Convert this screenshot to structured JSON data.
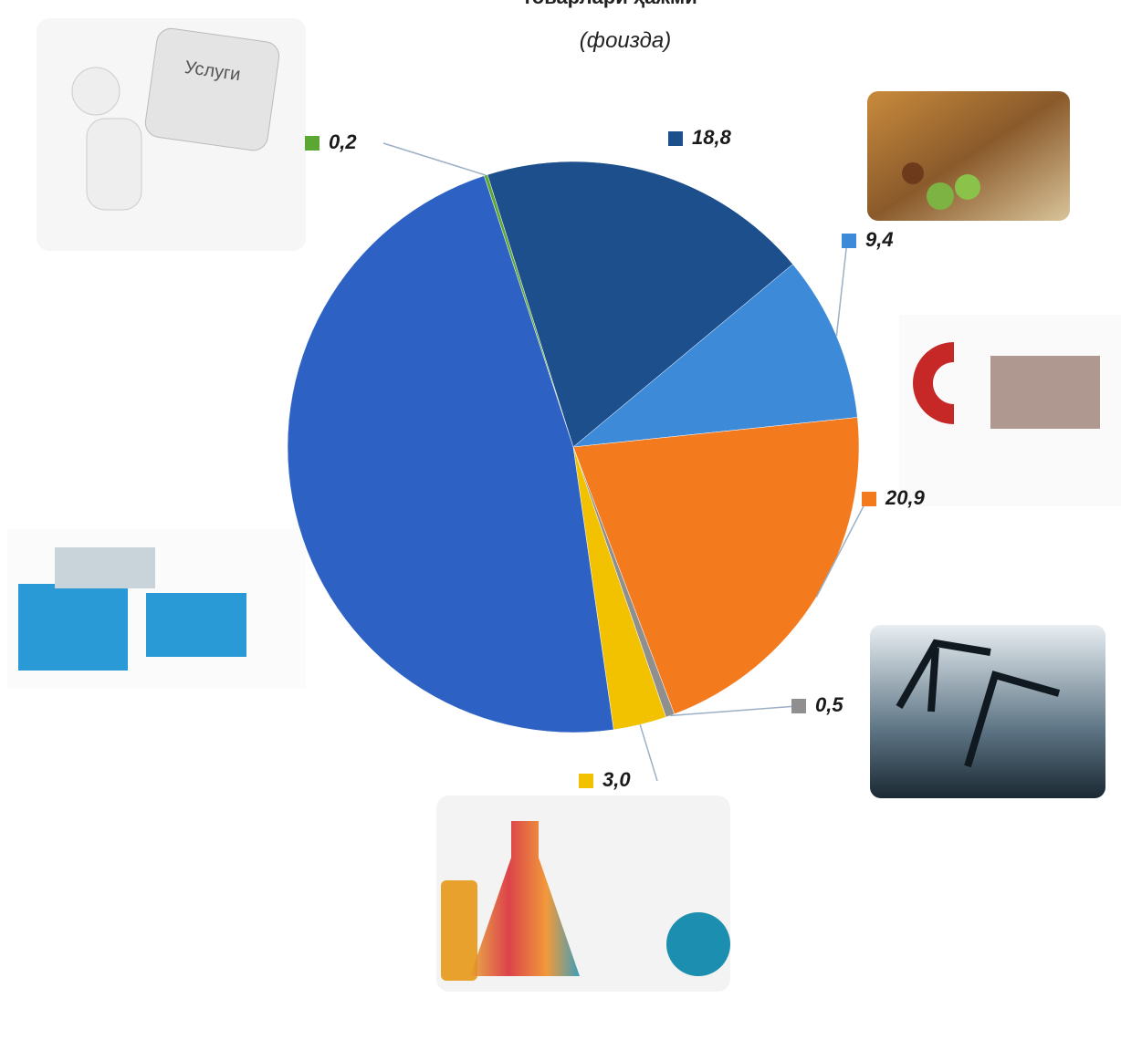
{
  "chart_data": {
    "type": "pie",
    "title": "товарлари ҳажми",
    "subtitle": "(фоизда)",
    "illustration_label": "Услуги",
    "series": [
      {
        "name": null,
        "color": "#5aa832",
        "values": [
          0.2
        ],
        "value_labels": [
          "0,2"
        ]
      },
      {
        "name": null,
        "color": "#1c4f8c",
        "values": [
          18.8
        ],
        "value_labels": [
          "18,8"
        ]
      },
      {
        "name": null,
        "color": "#3c8ad8",
        "values": [
          9.4
        ],
        "value_labels": [
          "9,4"
        ]
      },
      {
        "name": null,
        "color": "#f47a1e",
        "values": [
          20.9
        ],
        "value_labels": [
          "20,9"
        ]
      },
      {
        "name": null,
        "color": "#8f8f8f",
        "values": [
          0.5
        ],
        "value_labels": [
          "0,5"
        ]
      },
      {
        "name": null,
        "color": "#f2c200",
        "values": [
          3.0
        ],
        "value_labels": [
          "3,0"
        ]
      },
      {
        "name": null,
        "color": "#2d62c4",
        "values": [
          47.2
        ],
        "value_labels": [
          null
        ]
      }
    ]
  }
}
